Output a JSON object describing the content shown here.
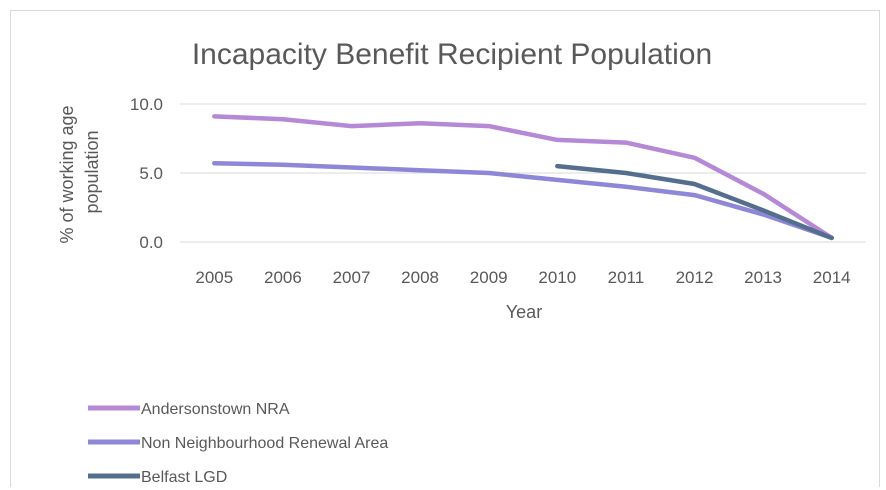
{
  "chart_data": {
    "type": "line",
    "title": "Incapacity Benefit Recipient Population",
    "xlabel": "Year",
    "ylabel": "% of working age population",
    "ylabel_lines": [
      "% of working age",
      "population"
    ],
    "categories": [
      "2005",
      "2006",
      "2007",
      "2008",
      "2009",
      "2010",
      "2011",
      "2012",
      "2013",
      "2014"
    ],
    "yticks": [
      "0.0",
      "5.0",
      "10.0"
    ],
    "ylim": [
      0,
      10
    ],
    "grid": true,
    "legend_position": "bottom-left",
    "series": [
      {
        "name": "Andersonstown NRA",
        "color": "#b589d6",
        "values": [
          9.1,
          8.9,
          8.4,
          8.6,
          8.4,
          7.4,
          7.2,
          6.1,
          3.5,
          0.3
        ]
      },
      {
        "name": "Non Neighbourhood Renewal Area",
        "color": "#8e87d8",
        "values": [
          5.7,
          5.6,
          5.4,
          5.2,
          5.0,
          4.5,
          4.0,
          3.4,
          2.0,
          0.3
        ]
      },
      {
        "name": "Belfast LGD",
        "color": "#546e8e",
        "values": [
          null,
          null,
          null,
          null,
          null,
          5.5,
          5.0,
          4.2,
          2.3,
          0.3
        ]
      }
    ]
  }
}
